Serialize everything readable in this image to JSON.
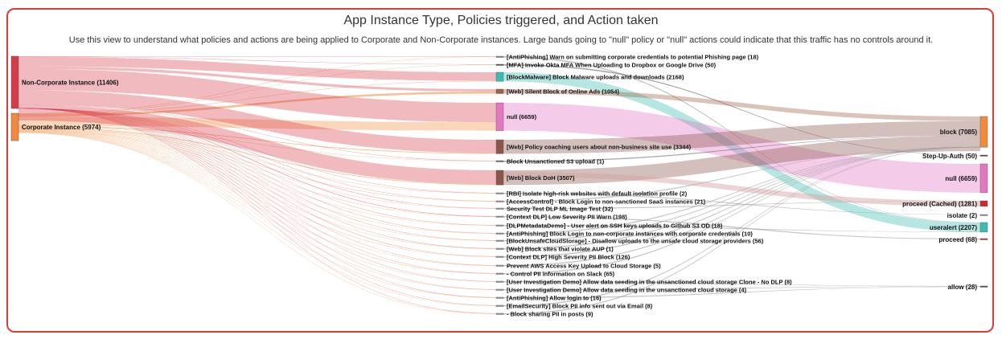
{
  "title": "App Instance Type, Policies triggered, and Action taken",
  "subtitle": "Use this view to understand what policies and actions are being applied to Corporate and Non-Corporate instances. Large bands going to \"null\" policy or \"null\" actions could indicate that this traffic has no controls around it.",
  "chart_data": {
    "type": "sankey",
    "sources": [
      {
        "name": "Non-Corporate Instance",
        "value": 11406,
        "color": "#d73a49"
      },
      {
        "name": "Corporate Instance",
        "value": 5974,
        "color": "#f28a3c"
      }
    ],
    "policies": [
      {
        "name": "[AntiPhishing] Warn on submitting corporate credentials to potential Phishing page",
        "value": 18,
        "color": "#888888"
      },
      {
        "name": "[MFA] Invoke Okta MFA When Uploading to Dropbox or Google Drive",
        "value": 50,
        "color": "#555555"
      },
      {
        "name": "[BlockMalware] Block Malware uploads and downloads",
        "value": 2168,
        "color": "#3cbcb0"
      },
      {
        "name": "[Web] Silent Block of Online Ads",
        "value": 1054,
        "color": "#a0604a"
      },
      {
        "name": "null",
        "value": 6659,
        "color": "#e377c2"
      },
      {
        "name": "[Web] Policy coaching users about non-business site use",
        "value": 3344,
        "color": "#8c564b"
      },
      {
        "name": "Block Unsanctioned S3 upload",
        "value": 1,
        "color": "#666666"
      },
      {
        "name": "[Web] Block DoH",
        "value": 3507,
        "color": "#8c564b"
      },
      {
        "name": "[RBI] Isolate high-risk websites with default isolation profile",
        "value": 2,
        "color": "#999999"
      },
      {
        "name": "[AccessControl] - Block Login to non-sanctioned SaaS instances",
        "value": 21,
        "color": "#999999"
      },
      {
        "name": "Security Test DLP ML Image Test",
        "value": 32,
        "color": "#999999"
      },
      {
        "name": "[Context DLP] Low Severity PII Warn",
        "value": 198,
        "color": "#999999"
      },
      {
        "name": "[DLPMetadataDemo] - User alert on SSH keys uploads to Github S3 OD",
        "value": 18,
        "color": "#999999"
      },
      {
        "name": "[AntiPhishing] Block Login to non-corporate instances with corporate credentials",
        "value": 10,
        "color": "#999999"
      },
      {
        "name": "[BlockUnsafeCloudStorage] - Disallow uploads to the unsafe cloud storage providers",
        "value": 56,
        "color": "#999999"
      },
      {
        "name": "[Web] Block sites that violate AUP",
        "value": 1,
        "color": "#999999"
      },
      {
        "name": "[Context DLP] High Severity PII Block",
        "value": 126,
        "color": "#999999"
      },
      {
        "name": "Prevent AWS Access Key Upload to Cloud Storage",
        "value": 5,
        "color": "#999999"
      },
      {
        "name": "- Control PII information on Slack",
        "value": 65,
        "color": "#999999"
      },
      {
        "name": "[User Investigation Demo] Allow data seeding in the unsanctioned cloud storage Clone - No DLP",
        "value": 8,
        "color": "#999999"
      },
      {
        "name": "[User Investigation Demo] Allow data seeding in the unsanctioned cloud storage",
        "value": 4,
        "color": "#999999"
      },
      {
        "name": "[AntiPhishing] Allow login to",
        "value": 16,
        "color": "#999999"
      },
      {
        "name": "[EmailSecurity] Block PII info sent out via Email",
        "value": 8,
        "color": "#999999"
      },
      {
        "name": "- Block sharing PII in posts",
        "value": 9,
        "color": "#999999"
      }
    ],
    "actions": [
      {
        "name": "block",
        "value": 7085,
        "color": "#f28a3c"
      },
      {
        "name": "Step-Up-Auth",
        "value": 50,
        "color": "#555555"
      },
      {
        "name": "null",
        "value": 6659,
        "color": "#e377c2"
      },
      {
        "name": "proceed (Cached)",
        "value": 1281,
        "color": "#d62728"
      },
      {
        "name": "isolate",
        "value": 2,
        "color": "#999999"
      },
      {
        "name": "useralert",
        "value": 2207,
        "color": "#3cbcb0"
      },
      {
        "name": "proceed",
        "value": 68,
        "color": "#d62728"
      },
      {
        "name": "allow",
        "value": 28,
        "color": "#555555"
      }
    ]
  }
}
